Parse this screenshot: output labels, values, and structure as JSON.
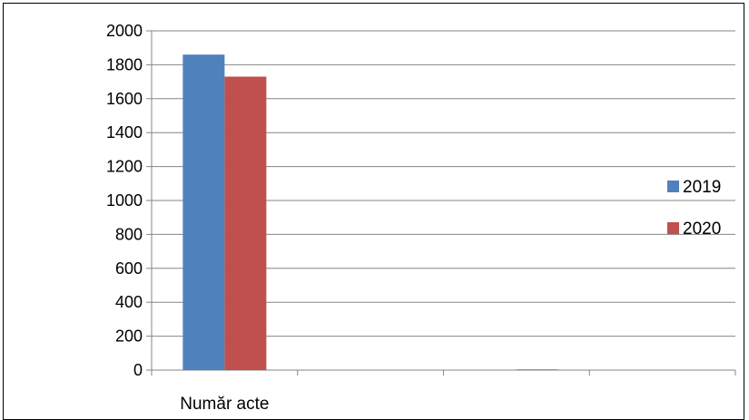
{
  "chart_data": {
    "type": "bar",
    "categories": [
      "Număr acte",
      "",
      "",
      ""
    ],
    "series": [
      {
        "name": "2019",
        "color": "#4f81bd",
        "values": [
          1860,
          0,
          0,
          0
        ]
      },
      {
        "name": "2020",
        "color": "#c0504d",
        "values": [
          1730,
          0,
          4,
          0
        ]
      }
    ],
    "title": "",
    "xlabel": "",
    "ylabel": "",
    "ylim": [
      0,
      2000
    ],
    "yticks": [
      "0",
      "200",
      "400",
      "600",
      "800",
      "1000",
      "1200",
      "1400",
      "1600",
      "1800",
      "2000"
    ],
    "grid": true,
    "legend_position": "right"
  }
}
